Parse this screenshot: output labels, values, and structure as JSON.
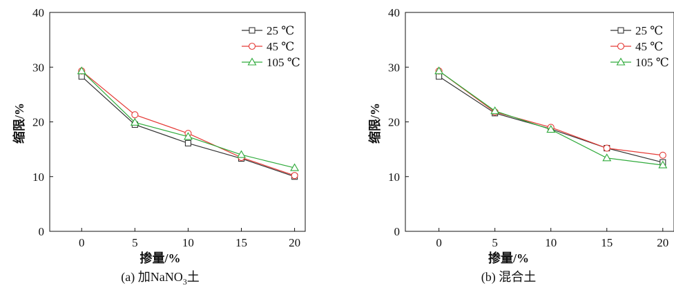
{
  "chart_data": [
    {
      "type": "line",
      "caption": "(a) 加NaNO",
      "caption_sub": "3",
      "caption_tail": "土",
      "xlabel": "掺量/%",
      "ylabel": "缩限/%",
      "x": [
        0,
        5,
        10,
        15,
        20
      ],
      "xlim": [
        -3,
        21
      ],
      "ylim": [
        0,
        40
      ],
      "xticks": [
        0,
        5,
        10,
        15,
        20
      ],
      "yticks": [
        0,
        10,
        20,
        30,
        40
      ],
      "legend_position": "top-right",
      "series": [
        {
          "name": "25 ℃",
          "color": "#333333",
          "marker": "square",
          "values": [
            28.3,
            19.5,
            16.1,
            13.3,
            10.0
          ]
        },
        {
          "name": "45 ℃",
          "color": "#e53935",
          "marker": "circle",
          "values": [
            29.3,
            21.3,
            17.9,
            13.5,
            10.2
          ]
        },
        {
          "name": "105 ℃",
          "color": "#2eaa3a",
          "marker": "triangle",
          "values": [
            29.3,
            19.9,
            17.3,
            14.0,
            11.6
          ]
        }
      ]
    },
    {
      "type": "line",
      "caption": "(b) 混合土",
      "caption_sub": "",
      "caption_tail": "",
      "xlabel": "掺量/%",
      "ylabel": "缩限/%",
      "x": [
        0,
        5,
        10,
        15,
        20
      ],
      "xlim": [
        -3,
        21
      ],
      "ylim": [
        0,
        40
      ],
      "xticks": [
        0,
        5,
        10,
        15,
        20
      ],
      "yticks": [
        0,
        10,
        20,
        30,
        40
      ],
      "legend_position": "top-right",
      "series": [
        {
          "name": "25 ℃",
          "color": "#333333",
          "marker": "square",
          "values": [
            28.3,
            21.6,
            18.7,
            15.2,
            12.6
          ]
        },
        {
          "name": "45 ℃",
          "color": "#e53935",
          "marker": "circle",
          "values": [
            29.3,
            21.8,
            19.0,
            15.2,
            13.9
          ]
        },
        {
          "name": "105 ℃",
          "color": "#2eaa3a",
          "marker": "triangle",
          "values": [
            29.3,
            22.0,
            18.6,
            13.4,
            12.1
          ]
        }
      ]
    }
  ]
}
